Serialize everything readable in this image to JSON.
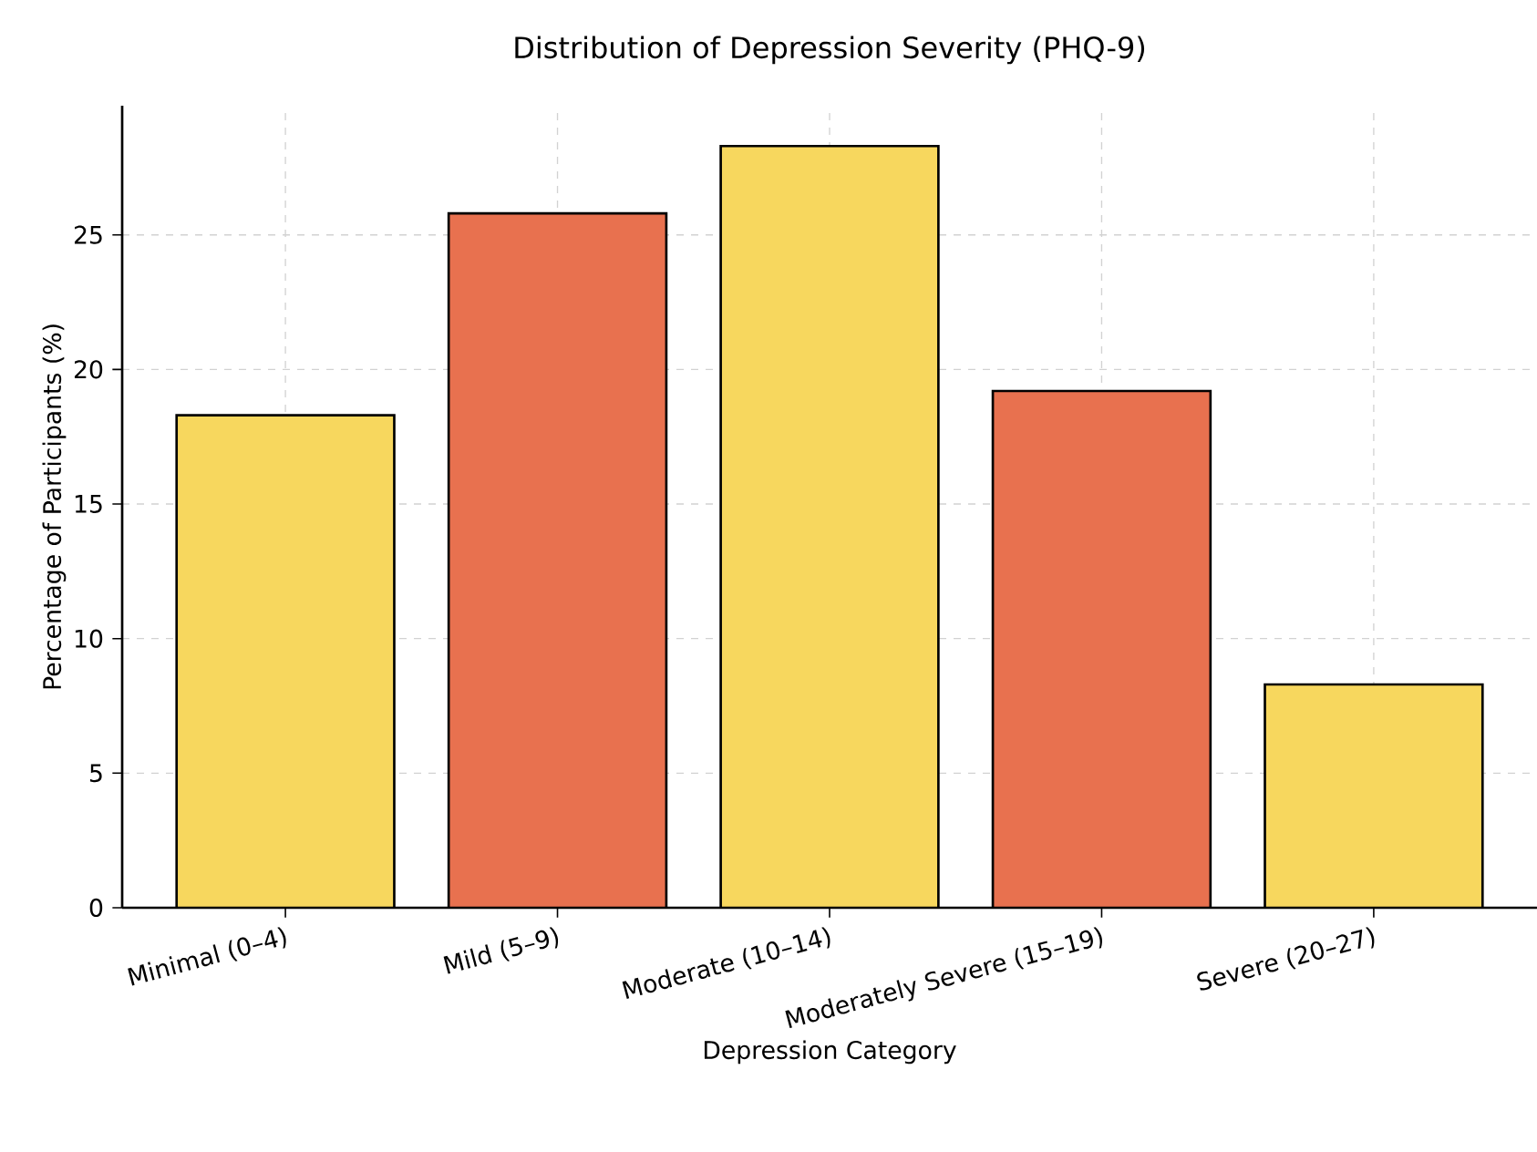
{
  "chart_data": {
    "type": "bar",
    "title": "Distribution of Depression Severity (PHQ-9)",
    "xlabel": "Depression Category",
    "ylabel": "Percentage of Participants (%)",
    "categories": [
      "Minimal (0–4)",
      "Mild (5–9)",
      "Moderate (10–14)",
      "Moderately Severe (15–19)",
      "Severe (20–27)"
    ],
    "values": [
      18.3,
      25.8,
      28.3,
      19.2,
      8.3
    ],
    "colors": [
      "#f7d75e",
      "#e8714f",
      "#f7d75e",
      "#e8714f",
      "#f7d75e"
    ],
    "ylim": [
      0,
      29.8
    ],
    "yticks": [
      0,
      5,
      10,
      15,
      20,
      25
    ],
    "grid": true
  }
}
